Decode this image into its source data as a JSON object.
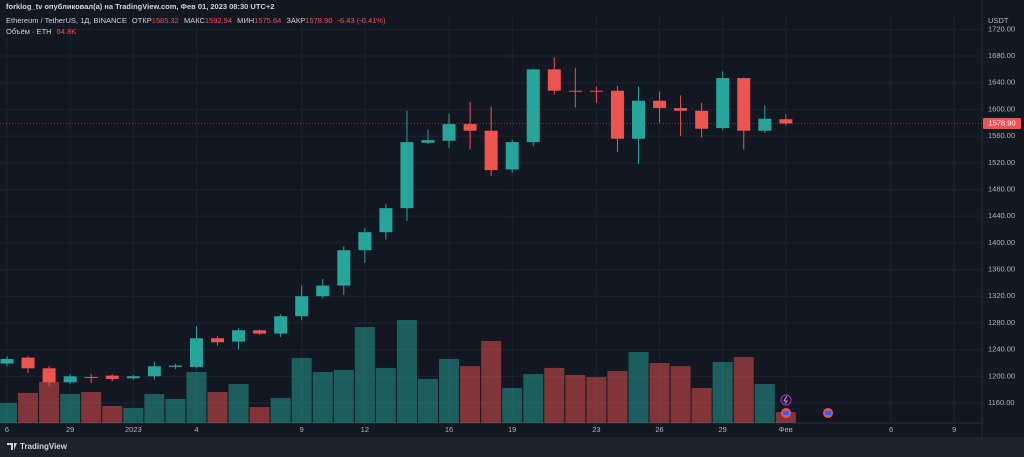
{
  "publisher": "forklog_tv опубликовал(а) на TradingView.com, Фев 01, 2023 08:30 UTC+2",
  "brand": "TradingView",
  "chart_data": {
    "type": "candlestick",
    "symbol": "Ethereum / TetherUS, 1Д, BINANCE",
    "ohlc_names": [
      "ОТКР",
      "МАКС",
      "МИН",
      "ЗАКР"
    ],
    "ohlc_labels": [
      "1585.32",
      "1592.94",
      "1575.64",
      "1578.90"
    ],
    "change": "-6.43 (-0.41%)",
    "currency": "USDT",
    "last_price_label": "1578.90",
    "up_color": "#26a69a",
    "down_color": "#ef5350",
    "grid": true,
    "categories": [
      "6",
      null,
      null,
      "29",
      null,
      null,
      "2023",
      null,
      null,
      "4",
      null,
      null,
      null,
      null,
      "9",
      null,
      null,
      "12",
      null,
      null,
      null,
      "16",
      null,
      null,
      "19",
      null,
      null,
      null,
      "23",
      null,
      null,
      "26",
      null,
      null,
      "29",
      null,
      null,
      "Фев",
      null,
      null,
      null,
      null,
      "6",
      null,
      null,
      "9",
      null
    ],
    "open": [
      1219,
      1228,
      1212,
      1191,
      1199,
      1201,
      1197,
      1200,
      1214,
      1214,
      1257,
      1252,
      1269,
      1264,
      1290,
      1320,
      1336,
      1389,
      1416,
      1452,
      1550,
      1553,
      1578,
      1568,
      1510,
      1551,
      1660,
      1628,
      1628,
      1628,
      1556,
      1613,
      1602,
      1598,
      1572,
      1647,
      1568,
      1585.32,
      null,
      null,
      null,
      null,
      null,
      null,
      null,
      null,
      null
    ],
    "high": [
      1230,
      1230,
      1215,
      1203,
      1203,
      1203,
      1202,
      1222,
      1219,
      1275,
      1260,
      1272,
      1270,
      1293,
      1336,
      1346,
      1395,
      1422,
      1458,
      1598,
      1570,
      1594,
      1611,
      1604,
      1555,
      1661,
      1678,
      1662,
      1634,
      1635,
      1634,
      1627,
      1621,
      1610,
      1657,
      1648,
      1606,
      1592.94,
      null,
      null,
      null,
      null,
      null,
      null,
      null,
      null,
      null
    ],
    "low": [
      1215,
      1205,
      1185,
      1188,
      1190,
      1193,
      1195,
      1195,
      1211,
      1212,
      1246,
      1240,
      1262,
      1259,
      1284,
      1317,
      1322,
      1370,
      1405,
      1433,
      1548,
      1542,
      1540,
      1500,
      1505,
      1545,
      1622,
      1603,
      1610,
      1536,
      1518,
      1580,
      1560,
      1558,
      1569,
      1540,
      1565,
      1575.64,
      null,
      null,
      null,
      null,
      null,
      null,
      null,
      null,
      null
    ],
    "close": [
      1226,
      1212,
      1191,
      1200,
      1198,
      1196,
      1200,
      1215,
      1216,
      1257,
      1251,
      1269,
      1264,
      1290,
      1320,
      1336,
      1389,
      1416,
      1452,
      1551,
      1554,
      1578,
      1568,
      1509,
      1551,
      1660,
      1628,
      1627,
      1627,
      1556,
      1613,
      1602,
      1598,
      1571,
      1647,
      1568,
      1586,
      1578.9,
      null,
      null,
      null,
      null,
      null,
      null,
      null,
      null,
      null
    ],
    "volume": {
      "name": "Объём · ETH",
      "legend_value": "64.8K",
      "values": [
        118000,
        177000,
        242000,
        171000,
        183000,
        100000,
        89000,
        171000,
        142000,
        301000,
        183000,
        230000,
        94000,
        148000,
        384000,
        301000,
        313000,
        566000,
        325000,
        608000,
        260000,
        378000,
        336000,
        484000,
        207000,
        289000,
        325000,
        283000,
        271000,
        307000,
        419000,
        354000,
        336000,
        207000,
        360000,
        389000,
        230000,
        64800,
        null,
        null,
        null,
        null,
        null,
        null,
        null,
        null,
        null
      ]
    },
    "ylim": [
      1130,
      1743
    ],
    "yticks": [
      {
        "value": 1160,
        "label": "1160.00"
      },
      {
        "value": 1200,
        "label": "1200.00"
      },
      {
        "value": 1240,
        "label": "1240.00"
      },
      {
        "value": 1280,
        "label": "1280.00"
      },
      {
        "value": 1320,
        "label": "1320.00"
      },
      {
        "value": 1360,
        "label": "1360.00"
      },
      {
        "value": 1400,
        "label": "1400.00"
      },
      {
        "value": 1440,
        "label": "1440.00"
      },
      {
        "value": 1480,
        "label": "1480.00"
      },
      {
        "value": 1520,
        "label": "1520.00"
      },
      {
        "value": 1560,
        "label": "1560.00"
      },
      {
        "value": 1600,
        "label": "1600.00"
      },
      {
        "value": 1640,
        "label": "1640.00"
      },
      {
        "value": 1680,
        "label": "1680.00"
      },
      {
        "value": 1720,
        "label": "1720.00"
      }
    ]
  }
}
